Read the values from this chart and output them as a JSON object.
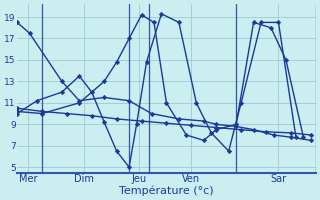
{
  "background_color": "#cceef0",
  "line_color": "#1a3a9a",
  "grid_color": "#99cccc",
  "xlabel": "Température (°c)",
  "ylim": [
    4.5,
    20.2
  ],
  "yticks": [
    5,
    7,
    9,
    11,
    13,
    15,
    17,
    19
  ],
  "ytick_labels": [
    "5",
    "7",
    "9",
    "11",
    "13",
    "15",
    "17",
    "19"
  ],
  "xlim": [
    0,
    12.0
  ],
  "vline_x": [
    1.0,
    4.5,
    5.3,
    8.8,
    12.0
  ],
  "xtick_labels": [
    "Mer",
    "Dim",
    "Jeu",
    "Ven",
    "Sar"
  ],
  "line1_x": [
    0.0,
    0.5,
    1.8,
    2.5,
    3.5,
    4.5,
    5.4,
    6.5,
    7.5,
    8.0,
    8.8,
    9.5,
    10.3,
    11.0,
    11.8
  ],
  "line1_y": [
    18.5,
    17.5,
    13.0,
    11.2,
    11.5,
    11.2,
    10.0,
    9.5,
    9.3,
    9.0,
    8.8,
    8.5,
    8.0,
    7.8,
    7.5
  ],
  "line2_x": [
    0.0,
    1.0,
    2.0,
    3.0,
    4.0,
    5.0,
    6.0,
    7.0,
    8.0,
    9.0,
    10.0,
    11.0,
    11.8
  ],
  "line2_y": [
    10.5,
    10.2,
    10.0,
    9.8,
    9.5,
    9.3,
    9.1,
    8.9,
    8.7,
    8.5,
    8.3,
    8.2,
    8.0
  ],
  "line3_x": [
    0.0,
    1.0,
    2.5,
    3.5,
    4.0,
    4.5,
    5.0,
    5.5,
    6.0,
    6.8,
    7.5,
    8.0,
    8.8,
    9.5,
    10.2,
    10.8,
    11.5
  ],
  "line3_y": [
    10.2,
    10.0,
    11.0,
    13.0,
    14.8,
    17.0,
    19.2,
    18.5,
    11.0,
    8.0,
    7.5,
    8.5,
    9.0,
    18.5,
    18.0,
    15.0,
    7.8
  ],
  "line4_x": [
    0.0,
    0.8,
    1.8,
    2.5,
    3.0,
    3.5,
    4.0,
    4.5,
    4.8,
    5.2,
    5.8,
    6.5,
    7.2,
    7.8,
    8.5,
    9.0,
    9.8,
    10.5,
    11.2
  ],
  "line4_y": [
    10.0,
    11.2,
    12.0,
    13.5,
    12.0,
    9.2,
    6.5,
    5.0,
    9.0,
    14.8,
    19.3,
    18.5,
    11.0,
    8.2,
    6.5,
    11.0,
    18.5,
    18.5,
    7.8
  ]
}
